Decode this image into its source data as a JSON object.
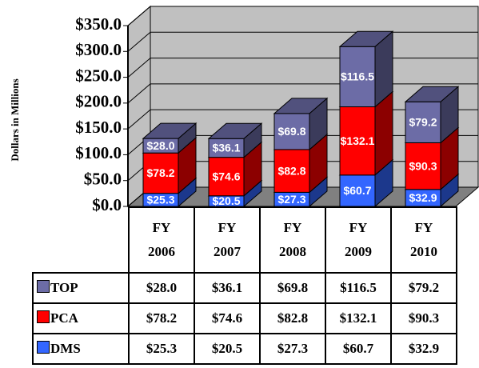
{
  "chart_data": {
    "type": "bar",
    "stacked": true,
    "y_label": "Dollars in Millions",
    "categories": [
      "FY 2006",
      "FY 2007",
      "FY 2008",
      "FY 2009",
      "FY 2010"
    ],
    "series": [
      {
        "name": "DMS",
        "color": "#3366ff",
        "values": [
          25.3,
          20.5,
          27.3,
          60.7,
          32.9
        ],
        "value_labels": [
          "$25.3",
          "$20.5",
          "$27.3",
          "$60.7",
          "$32.9"
        ]
      },
      {
        "name": "PCA",
        "color": "#ff0000",
        "values": [
          78.2,
          74.6,
          82.8,
          132.1,
          90.3
        ],
        "value_labels": [
          "$78.2",
          "$74.6",
          "$82.8",
          "$132.1",
          "$90.3"
        ]
      },
      {
        "name": "TOP",
        "color": "#6c6ca6",
        "values": [
          28.0,
          36.1,
          69.8,
          116.5,
          79.2
        ],
        "value_labels": [
          "$28.0",
          "$36.1",
          "$69.8",
          "$116.5",
          "$79.2"
        ]
      }
    ],
    "ylim": [
      0,
      350
    ],
    "yticks": [
      {
        "value": 0,
        "label": "$0.0"
      },
      {
        "value": 50,
        "label": "$50.0"
      },
      {
        "value": 100,
        "label": "$100.0"
      },
      {
        "value": 150,
        "label": "$150.0"
      },
      {
        "value": 200,
        "label": "$200.0"
      },
      {
        "value": 250,
        "label": "$250.0"
      },
      {
        "value": 300,
        "label": "$300.0"
      },
      {
        "value": 350,
        "label": "$350.0"
      }
    ],
    "grid": true
  }
}
